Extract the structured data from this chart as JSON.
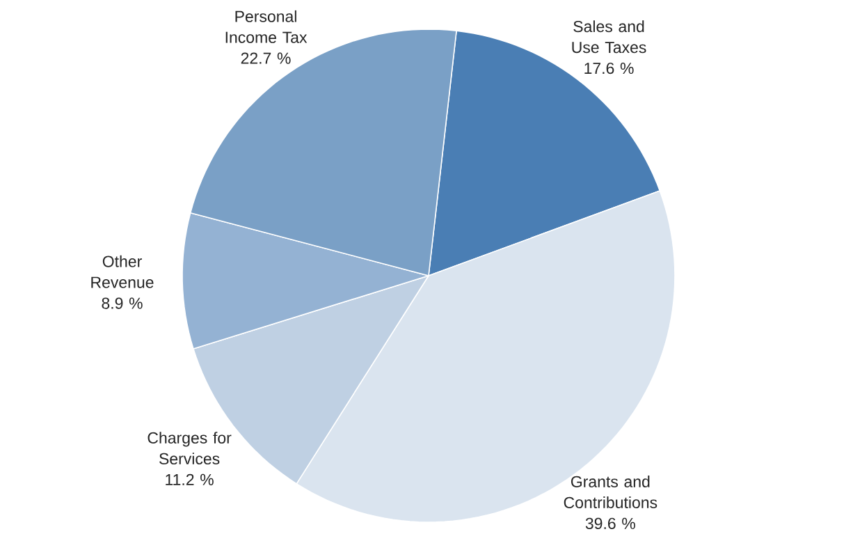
{
  "chart_data": {
    "type": "pie",
    "categories": [
      "Sales and Use Taxes",
      "Grants and Contributions",
      "Charges for Services",
      "Other Revenue",
      "Personal Income Tax"
    ],
    "values": [
      17.6,
      39.6,
      11.2,
      8.9,
      22.7
    ],
    "value_labels": [
      "17.6 %",
      "39.6 %",
      "11.2 %",
      "8.9 %",
      "22.7 %"
    ],
    "colors": [
      "#4a7eb4",
      "#dae4ef",
      "#bfd0e3",
      "#94b2d3",
      "#7aa0c6"
    ]
  }
}
